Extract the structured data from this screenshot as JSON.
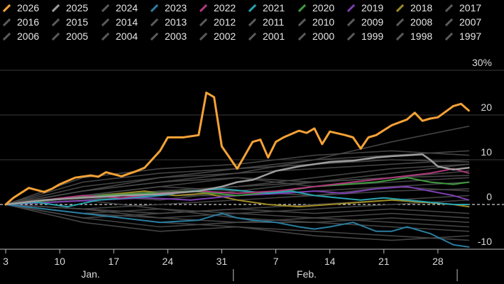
{
  "chart_data": {
    "type": "line",
    "title": "",
    "xlabel": "",
    "ylabel": "",
    "y_unit": "%",
    "ylim": [
      -10,
      30
    ],
    "yticks": [
      {
        "value": 30,
        "label": "30%"
      },
      {
        "value": 20,
        "label": "20"
      },
      {
        "value": 10,
        "label": "10"
      },
      {
        "value": 0,
        "label": "0"
      },
      {
        "value": -10,
        "label": "-10"
      }
    ],
    "x_domain": [
      0,
      63
    ],
    "xticks": [
      {
        "x": 0,
        "label": "3"
      },
      {
        "x": 7,
        "label": "10"
      },
      {
        "x": 14,
        "label": "17"
      },
      {
        "x": 21,
        "label": "24"
      },
      {
        "x": 28,
        "label": "31"
      },
      {
        "x": 35,
        "label": "7"
      },
      {
        "x": 42,
        "label": "14"
      },
      {
        "x": 49,
        "label": "21"
      },
      {
        "x": 56,
        "label": "28"
      }
    ],
    "months": [
      {
        "x": 11,
        "label": "Jan."
      },
      {
        "x": 39,
        "label": "Feb."
      }
    ],
    "month_separators": [
      -2,
      29.5,
      58.5
    ],
    "grid": "horizontal",
    "legend_position": "top",
    "colors": {
      "2026": "#f5a236",
      "2025": "#9e9e9e",
      "2023": "#2a7ea0",
      "2022": "#b03a7e",
      "2021": "#2aa3b0",
      "2020": "#3f9b3f",
      "2019": "#7b3fb0",
      "2018": "#a08b25",
      "other": "#4a4a4a"
    },
    "series": [
      {
        "name": "2026",
        "x": [
          0,
          1,
          3,
          5,
          6,
          7,
          9,
          11,
          12,
          13,
          15,
          17,
          18,
          20,
          21,
          23,
          25,
          26,
          27,
          28,
          30,
          32,
          33,
          34,
          35,
          36,
          38,
          39,
          40,
          41,
          42,
          44,
          45,
          46,
          47,
          48,
          50,
          52,
          53,
          54,
          55,
          56,
          58,
          59,
          60
        ],
        "values": [
          0,
          1.5,
          3.7,
          2.8,
          3.5,
          4.5,
          6,
          6.5,
          6.2,
          7.2,
          6.3,
          7.5,
          8.2,
          12,
          15,
          15,
          15.5,
          25,
          24,
          13,
          8,
          14,
          14.5,
          10.5,
          14,
          15,
          16.5,
          16,
          17,
          13.5,
          16.3,
          15.5,
          15,
          12.5,
          15,
          15.5,
          17.7,
          19,
          20.5,
          18.7,
          19.2,
          19.5,
          22,
          22.5,
          21
        ]
      },
      {
        "name": "2025",
        "x": [
          0,
          5,
          10,
          15,
          20,
          25,
          28,
          30,
          32,
          35,
          38,
          42,
          45,
          48,
          50,
          52,
          54,
          55,
          56,
          58,
          60
        ],
        "values": [
          0,
          1,
          1.5,
          2,
          2.3,
          3,
          4,
          5,
          5.5,
          7.5,
          8.5,
          9.5,
          9.8,
          10.5,
          10.8,
          11,
          11.2,
          10,
          8.5,
          7.8,
          8.2
        ]
      },
      {
        "name": "2023",
        "x": [
          0,
          5,
          10,
          15,
          20,
          25,
          28,
          30,
          32,
          35,
          38,
          40,
          42,
          45,
          48,
          50,
          52,
          55,
          58,
          60
        ],
        "values": [
          0,
          -1,
          -2,
          -3,
          -4,
          -3.5,
          -2,
          -3,
          -3.5,
          -4,
          -5,
          -5.5,
          -5,
          -4,
          -6,
          -6,
          -5,
          -6.5,
          -9,
          -9.5
        ]
      },
      {
        "name": "2022",
        "x": [
          0,
          5,
          10,
          15,
          20,
          25,
          30,
          35,
          40,
          45,
          50,
          55,
          58,
          60
        ],
        "values": [
          0,
          1,
          2,
          1.5,
          2.5,
          3,
          2.5,
          3,
          4,
          5,
          6,
          7,
          8,
          7
        ]
      },
      {
        "name": "2021",
        "x": [
          0,
          4,
          8,
          12,
          16,
          20,
          24,
          28,
          31,
          34,
          37,
          40,
          43,
          46,
          49,
          52,
          55,
          58,
          60
        ],
        "values": [
          0,
          0.5,
          -0.5,
          1,
          1.5,
          2,
          3,
          3.5,
          3,
          2.5,
          3,
          2,
          1.5,
          1,
          1.5,
          1,
          0.5,
          0,
          0
        ]
      },
      {
        "name": "2020",
        "x": [
          0,
          6,
          12,
          18,
          24,
          30,
          36,
          40,
          44,
          48,
          52,
          55,
          58,
          60
        ],
        "values": [
          0,
          1,
          2,
          2.5,
          3,
          2,
          3,
          4,
          4.5,
          5,
          6,
          5,
          4.5,
          5
        ]
      },
      {
        "name": "2019",
        "x": [
          0,
          6,
          12,
          18,
          24,
          30,
          36,
          40,
          44,
          48,
          52,
          55,
          58,
          60
        ],
        "values": [
          0,
          0.5,
          1,
          1.5,
          1,
          2,
          2.5,
          3,
          2.5,
          3.5,
          4,
          3,
          2,
          1
        ]
      },
      {
        "name": "2018",
        "x": [
          0,
          6,
          12,
          18,
          22,
          26,
          30,
          34,
          38,
          42,
          46,
          50,
          54,
          58,
          60
        ],
        "values": [
          0,
          1,
          2,
          3,
          2,
          2.5,
          1,
          0,
          -0.5,
          0,
          0.5,
          1,
          0.5,
          0,
          -0.5
        ]
      },
      {
        "name": "2024",
        "x": [
          0,
          10,
          20,
          30,
          40,
          50,
          60
        ],
        "values": [
          0,
          2,
          4,
          6,
          5,
          7,
          9
        ]
      },
      {
        "name": "2017",
        "x": [
          0,
          10,
          20,
          30,
          40,
          50,
          60
        ],
        "values": [
          0,
          3,
          5,
          7,
          10,
          14,
          17.5
        ]
      },
      {
        "name": "2016",
        "x": [
          0,
          10,
          20,
          30,
          40,
          50,
          60
        ],
        "values": [
          0,
          -2,
          -4,
          -5,
          -6,
          -7,
          -8
        ]
      },
      {
        "name": "2015",
        "x": [
          0,
          10,
          20,
          30,
          40,
          50,
          60
        ],
        "values": [
          0,
          3,
          6,
          8,
          10,
          11,
          12
        ]
      },
      {
        "name": "2014",
        "x": [
          0,
          10,
          20,
          30,
          40,
          50,
          60
        ],
        "values": [
          0,
          -1,
          -2,
          -1,
          0,
          1,
          2
        ]
      },
      {
        "name": "2013",
        "x": [
          0,
          10,
          20,
          30,
          40,
          50,
          60
        ],
        "values": [
          0,
          2,
          3,
          4,
          6,
          8,
          9
        ]
      },
      {
        "name": "2012",
        "x": [
          0,
          10,
          20,
          30,
          40,
          50,
          60
        ],
        "values": [
          0,
          4,
          6,
          7,
          8,
          9,
          10
        ]
      },
      {
        "name": "2011",
        "x": [
          0,
          10,
          20,
          30,
          40,
          50,
          60
        ],
        "values": [
          0,
          -3,
          -5,
          -4,
          -3,
          -4,
          -5
        ]
      },
      {
        "name": "2010",
        "x": [
          0,
          10,
          20,
          30,
          40,
          50,
          60
        ],
        "values": [
          0,
          1,
          -1,
          -2,
          -1,
          0,
          1
        ]
      },
      {
        "name": "2009",
        "x": [
          0,
          10,
          20,
          30,
          40,
          50,
          60
        ],
        "values": [
          0,
          -4,
          -6,
          -5,
          -7,
          -8,
          -7
        ]
      },
      {
        "name": "2008",
        "x": [
          0,
          10,
          20,
          30,
          40,
          50,
          60
        ],
        "values": [
          0,
          2,
          1,
          3,
          2,
          4,
          3
        ]
      },
      {
        "name": "2007",
        "x": [
          0,
          10,
          20,
          30,
          40,
          50,
          60
        ],
        "values": [
          0,
          5,
          7,
          8,
          9,
          10,
          9.5
        ]
      },
      {
        "name": "2006",
        "x": [
          0,
          10,
          20,
          30,
          40,
          50,
          60
        ],
        "values": [
          0,
          -2,
          -3,
          -2,
          -3,
          -2,
          -3
        ]
      },
      {
        "name": "2005",
        "x": [
          0,
          10,
          20,
          30,
          40,
          50,
          60
        ],
        "values": [
          0,
          1,
          2,
          2,
          3,
          4,
          5
        ]
      },
      {
        "name": "2004",
        "x": [
          0,
          10,
          20,
          30,
          40,
          50,
          60
        ],
        "values": [
          0,
          -1,
          -3,
          -4,
          -4,
          -5,
          -6
        ]
      },
      {
        "name": "2003",
        "x": [
          0,
          10,
          20,
          30,
          40,
          50,
          60
        ],
        "values": [
          0,
          6,
          8,
          9,
          11,
          12,
          11
        ]
      },
      {
        "name": "2002",
        "x": [
          0,
          10,
          20,
          30,
          40,
          50,
          60
        ],
        "values": [
          0,
          -3,
          -2,
          -1,
          -2,
          -1,
          -2
        ]
      },
      {
        "name": "2001",
        "x": [
          0,
          10,
          20,
          30,
          40,
          50,
          60
        ],
        "values": [
          0,
          2,
          4,
          3,
          5,
          6,
          6.5
        ]
      },
      {
        "name": "2000",
        "x": [
          0,
          10,
          20,
          30,
          40,
          50,
          60
        ],
        "values": [
          0,
          3,
          5,
          6,
          4,
          5,
          6
        ]
      },
      {
        "name": "1999",
        "x": [
          0,
          10,
          20,
          30,
          40,
          50,
          60
        ],
        "values": [
          0,
          -1,
          0,
          1,
          2,
          3,
          3.5
        ]
      },
      {
        "name": "1998",
        "x": [
          0,
          10,
          20,
          30,
          40,
          50,
          60
        ],
        "values": [
          0,
          1,
          3,
          4,
          5,
          6,
          7.5
        ]
      },
      {
        "name": "1997",
        "x": [
          0,
          10,
          20,
          30,
          40,
          50,
          60
        ],
        "values": [
          0,
          -2,
          -1,
          -3,
          -4,
          -3,
          -4
        ]
      }
    ]
  }
}
